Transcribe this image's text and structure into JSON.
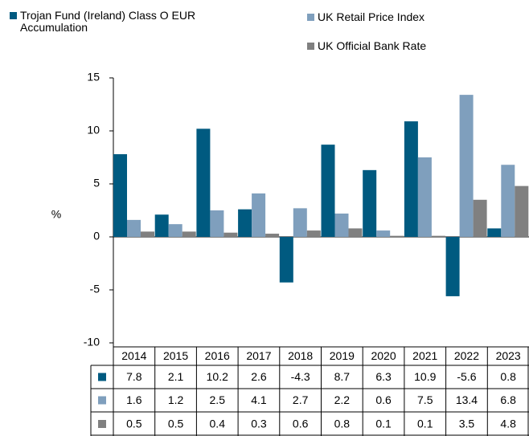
{
  "chart_data": {
    "type": "bar",
    "categories": [
      "2014",
      "2015",
      "2016",
      "2017",
      "2018",
      "2019",
      "2020",
      "2021",
      "2022",
      "2023"
    ],
    "series": [
      {
        "name": "Trojan Fund (Ireland) Class O EUR Accumulation",
        "color": "#005a80",
        "values": [
          7.8,
          2.1,
          10.2,
          2.6,
          -4.3,
          8.7,
          6.3,
          10.9,
          -5.6,
          0.8
        ]
      },
      {
        "name": "UK Retail Price Index",
        "color": "#7f9fbd",
        "values": [
          1.6,
          1.2,
          2.5,
          4.1,
          2.7,
          2.2,
          0.6,
          7.5,
          13.4,
          6.8
        ]
      },
      {
        "name": "UK Official Bank Rate",
        "color": "#808080",
        "values": [
          0.5,
          0.5,
          0.4,
          0.3,
          0.6,
          0.8,
          0.1,
          0.1,
          3.5,
          4.8
        ]
      }
    ],
    "y_label": "%",
    "ylim": [
      -10,
      15
    ],
    "yticks": [
      15,
      10,
      5,
      0,
      -5,
      -10
    ]
  }
}
